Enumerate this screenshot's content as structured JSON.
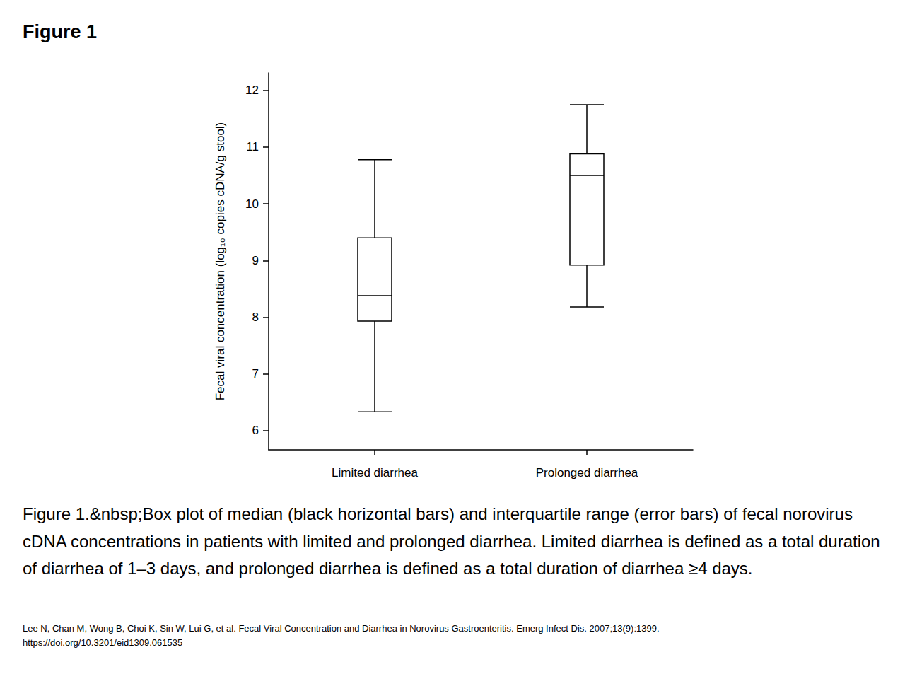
{
  "heading": "Figure 1",
  "caption": "Figure 1.&nbsp;Box plot of median (black horizontal bars) and interquartile range (error bars) of fecal norovirus cDNA concentrations in patients with limited and prolonged diarrhea. Limited diarrhea is defined as a total duration of diarrhea of 1–3 days, and prolonged diarrhea is defined as a total duration of diarrhea ≥4 days.",
  "citation": [
    "Lee N, Chan M, Wong B, Choi K, Sin W, Lui G, et al. Fecal Viral Concentration and Diarrhea in Norovirus Gastroenteritis. Emerg Infect Dis. 2007;13(9):1399.",
    "https://doi.org/10.3201/eid1309.061535"
  ],
  "chart_data": {
    "type": "boxplot",
    "ylabel": "Fecal viral concentration (log₁₀ copies cDNA/g stool)",
    "categories": [
      "Limited diarrhea",
      "Prolonged diarrhea"
    ],
    "values": [
      [
        6.33,
        7.93,
        8.38,
        9.4,
        10.78
      ],
      [
        8.18,
        8.92,
        10.5,
        10.88,
        11.75
      ]
    ],
    "color": "#000000",
    "ylim": [
      5.66,
      12.31
    ],
    "yticks": [
      6,
      7,
      8,
      9,
      10,
      11,
      12
    ],
    "grid": false
  }
}
